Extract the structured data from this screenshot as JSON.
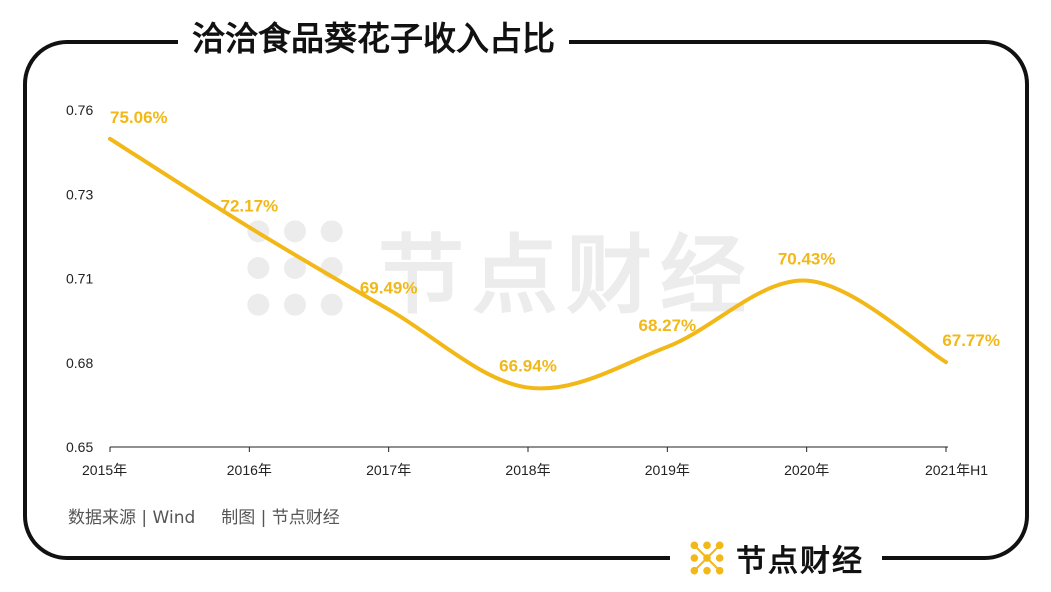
{
  "title": "洽洽食品葵花子收入占比",
  "footer": {
    "source": "数据来源 | Wind",
    "credit": "制图 | 节点财经"
  },
  "brand": {
    "name": "节点财经",
    "logo_icon": "node-dots-logo-icon",
    "accent_color": "#f2b818"
  },
  "watermark": {
    "text": "节点财经"
  },
  "chart_data": {
    "type": "line",
    "categories": [
      "2015年",
      "2016年",
      "2017年",
      "2018年",
      "2019年",
      "2020年",
      "2021年H1"
    ],
    "values": [
      0.7506,
      0.7217,
      0.6949,
      0.6694,
      0.6827,
      0.7043,
      0.6777
    ],
    "data_labels": [
      "75.06%",
      "72.17%",
      "69.49%",
      "66.94%",
      "68.27%",
      "70.43%",
      "67.77%"
    ],
    "y_ticks": [
      0.65,
      0.68,
      0.71,
      0.73,
      0.76
    ],
    "ylim": [
      0.65,
      0.76
    ],
    "line_color": "#f2b818",
    "grid": false,
    "smooth": true
  }
}
